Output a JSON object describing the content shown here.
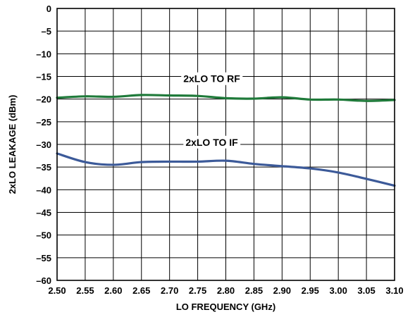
{
  "chart_data": {
    "type": "line",
    "title": "",
    "xlabel": "LO FREQUENCY (GHz)",
    "ylabel": "2xLO LEAKAGE (dBm)",
    "xlim": [
      2.5,
      3.1
    ],
    "ylim": [
      -60,
      0
    ],
    "x_ticks": [
      "2.50",
      "2.55",
      "2.60",
      "2.65",
      "2.70",
      "2.75",
      "2.80",
      "2.85",
      "2.90",
      "2.95",
      "3.00",
      "3.05",
      "3.10"
    ],
    "y_ticks": [
      "0",
      "–5",
      "–10",
      "–15",
      "–20",
      "–25",
      "–30",
      "–35",
      "–40",
      "–45",
      "–50",
      "–55",
      "–60"
    ],
    "grid": true,
    "series": [
      {
        "name": "2xLO TO RF",
        "color": "#1f7a3a",
        "x": [
          2.5,
          2.55,
          2.6,
          2.65,
          2.7,
          2.75,
          2.8,
          2.85,
          2.9,
          2.95,
          3.0,
          3.05,
          3.1
        ],
        "y": [
          -19.7,
          -19.4,
          -19.5,
          -19.1,
          -19.2,
          -19.3,
          -19.8,
          -19.9,
          -19.6,
          -20.1,
          -20.1,
          -20.4,
          -20.2
        ]
      },
      {
        "name": "2xLO TO IF",
        "color": "#3c5a99",
        "x": [
          2.5,
          2.55,
          2.6,
          2.65,
          2.7,
          2.75,
          2.8,
          2.85,
          2.9,
          2.95,
          3.0,
          3.05,
          3.1
        ],
        "y": [
          -32.0,
          -33.9,
          -34.5,
          -33.9,
          -33.8,
          -33.8,
          -33.6,
          -34.3,
          -34.8,
          -35.3,
          -36.2,
          -37.6,
          -39.1
        ]
      }
    ]
  }
}
